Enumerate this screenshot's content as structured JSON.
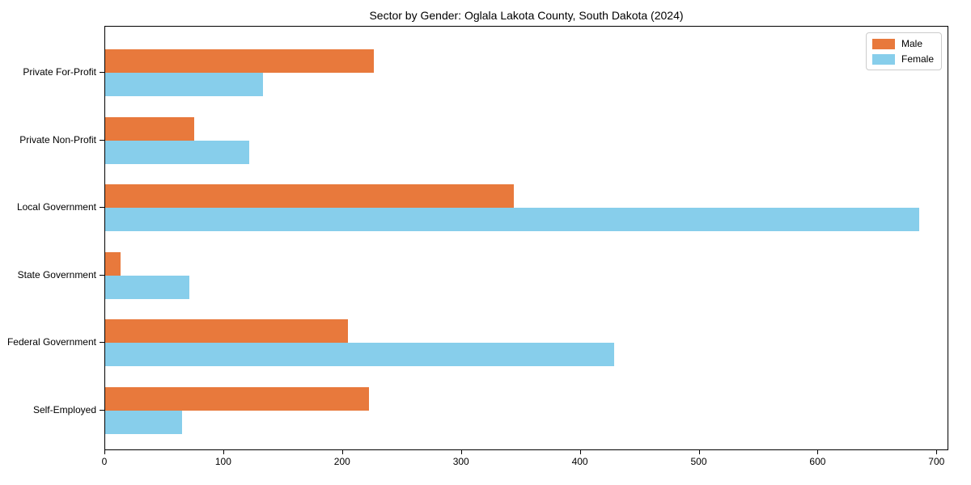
{
  "chart_data": {
    "type": "bar",
    "orientation": "horizontal",
    "title": "Sector by Gender: Oglala Lakota County, South Dakota (2024)",
    "categories": [
      "Private For-Profit",
      "Private Non-Profit",
      "Local Government",
      "State Government",
      "Federal Government",
      "Self-Employed"
    ],
    "series": [
      {
        "name": "Male",
        "color": "#e8793c",
        "values": [
          226,
          75,
          344,
          13,
          204,
          222
        ]
      },
      {
        "name": "Female",
        "color": "#87ceeb",
        "values": [
          133,
          121,
          685,
          71,
          428,
          65
        ]
      }
    ],
    "x_ticks": [
      0,
      100,
      200,
      300,
      400,
      500,
      600,
      700
    ],
    "xlim": [
      0,
      710
    ],
    "xlabel": "",
    "ylabel": "",
    "grid": false,
    "legend_position": "upper right",
    "legend_entries": [
      "Male",
      "Female"
    ]
  }
}
